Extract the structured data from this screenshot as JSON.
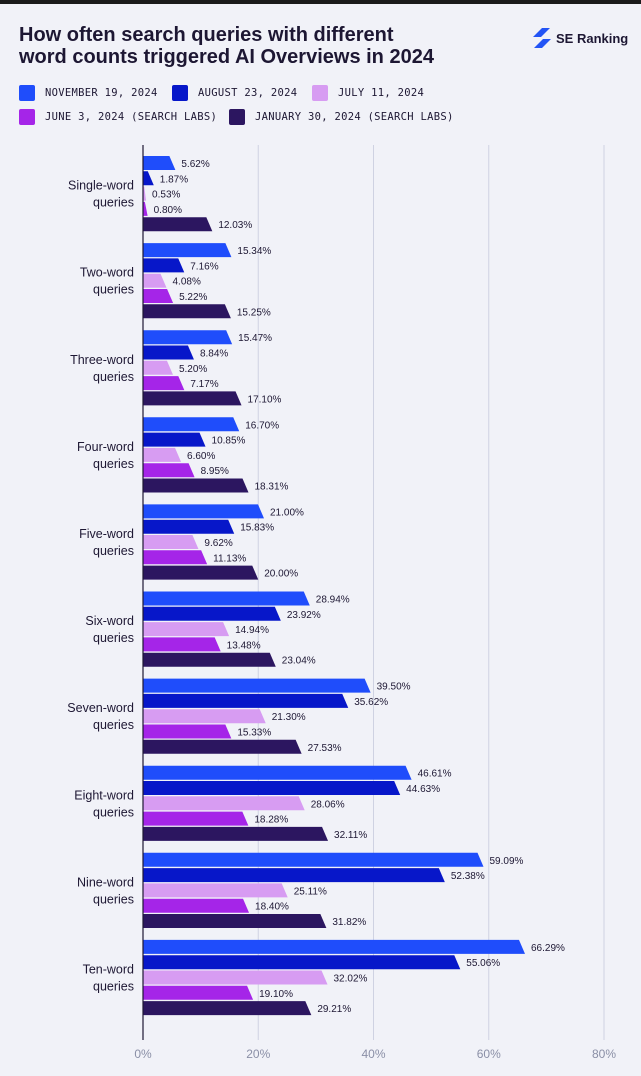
{
  "title_line1": "How often search queries with different",
  "title_line2": "word counts triggered AI Overviews in 2024",
  "brand": "SE Ranking",
  "chart_data": {
    "type": "bar",
    "orientation": "horizontal",
    "title": "How often search queries with different word counts triggered AI Overviews in 2024",
    "xlim": [
      0,
      80
    ],
    "xticks": [
      0,
      20,
      40,
      60,
      80
    ],
    "tick_suffix": "%",
    "grid": true,
    "legend_position": "top",
    "categories": [
      [
        "Single-word",
        "queries"
      ],
      [
        "Two-word",
        "queries"
      ],
      [
        "Three-word",
        "queries"
      ],
      [
        "Four-word",
        "queries"
      ],
      [
        "Five-word",
        "queries"
      ],
      [
        "Six-word",
        "queries"
      ],
      [
        "Seven-word",
        "queries"
      ],
      [
        "Eight-word",
        "queries"
      ],
      [
        "Nine-word",
        "queries"
      ],
      [
        "Ten-word",
        "queries"
      ]
    ],
    "series": [
      {
        "name": "NOVEMBER 19, 2024",
        "color": "#1f4dfb",
        "values": [
          5.62,
          15.34,
          15.47,
          16.7,
          21.0,
          28.94,
          39.5,
          46.61,
          59.09,
          66.29
        ],
        "labels": [
          "5.62%",
          "15.34%",
          "15.47%",
          "16.70%",
          "21.00%",
          "28.94%",
          "39.50%",
          "46.61%",
          "59.09%",
          "66.29%"
        ]
      },
      {
        "name": "AUGUST 23, 2024",
        "color": "#0717c9",
        "values": [
          1.87,
          7.16,
          8.84,
          10.85,
          15.83,
          23.92,
          35.62,
          44.63,
          52.38,
          55.06
        ],
        "labels": [
          "1.87%",
          "7.16%",
          "8.84%",
          "10.85%",
          "15.83%",
          "23.92%",
          "35.62%",
          "44.63%",
          "52.38%",
          "55.06%"
        ]
      },
      {
        "name": "JULY 11, 2024",
        "color": "#d79cf2",
        "values": [
          0.53,
          4.08,
          5.2,
          6.6,
          9.62,
          14.94,
          21.3,
          28.06,
          25.11,
          32.02
        ],
        "labels": [
          "0.53%",
          "4.08%",
          "5.20%",
          "6.60%",
          "9.62%",
          "14.94%",
          "21.30%",
          "28.06%",
          "25.11%",
          "32.02%"
        ]
      },
      {
        "name": "JUNE 3, 2024 (SEARCH LABS)",
        "color": "#a525e8",
        "values": [
          0.8,
          5.22,
          7.17,
          8.95,
          11.13,
          13.48,
          15.33,
          18.28,
          18.4,
          19.1
        ],
        "labels": [
          "0.80%",
          "5.22%",
          "7.17%",
          "8.95%",
          "11.13%",
          "13.48%",
          "15.33%",
          "18.28%",
          "18.40%",
          "19.10%"
        ]
      },
      {
        "name": "JANUARY 30, 2024 (SEARCH LABS)",
        "color": "#2c1660",
        "values": [
          12.03,
          15.25,
          17.1,
          18.31,
          20.0,
          23.04,
          27.53,
          32.11,
          31.82,
          29.21
        ],
        "labels": [
          "12.03%",
          "15.25%",
          "17.10%",
          "18.31%",
          "20.00%",
          "23.04%",
          "27.53%",
          "32.11%",
          "31.82%",
          "29.21%"
        ]
      }
    ]
  }
}
